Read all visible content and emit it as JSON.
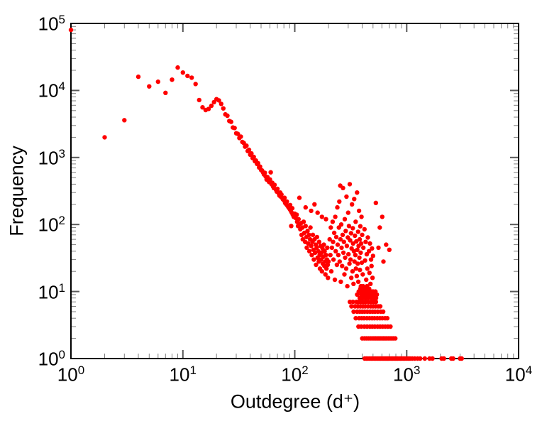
{
  "chart_data": {
    "type": "scatter",
    "title": "",
    "xlabel": "Outdegree (d⁺)",
    "ylabel": "Frequency",
    "x_scale": "log",
    "y_scale": "log",
    "xlim": [
      1,
      10000
    ],
    "ylim": [
      1,
      100000
    ],
    "grid": false,
    "legend": "none",
    "tick_base": "10",
    "x_tick_exponents": [
      0,
      1,
      2,
      3,
      4
    ],
    "y_tick_exponents": [
      0,
      1,
      2,
      3,
      4,
      5
    ],
    "marker": {
      "shape": "circle",
      "color": "#ff0000",
      "radius_px": 3.2
    },
    "colors": {
      "frame": "#000000",
      "major_tick": "#595959",
      "minor_tick": "#808080",
      "background": "#ffffff"
    },
    "points": [
      [
        1,
        80000
      ],
      [
        2,
        2000
      ],
      [
        3,
        3600
      ],
      [
        4,
        16000
      ],
      [
        5,
        11500
      ],
      [
        6,
        13500
      ],
      [
        7,
        9200
      ],
      [
        8,
        14500
      ],
      [
        9,
        22000
      ],
      [
        10,
        18500
      ],
      [
        11,
        16500
      ],
      [
        12,
        15500
      ],
      [
        13,
        12500
      ],
      [
        14,
        7200
      ],
      [
        15,
        5600
      ],
      [
        16,
        5100
      ],
      [
        17,
        5300
      ],
      [
        18,
        5900
      ],
      [
        19,
        6700
      ],
      [
        20,
        7400
      ],
      [
        21,
        7100
      ],
      [
        22,
        6300
      ],
      [
        23,
        5400
      ],
      [
        24,
        4400
      ],
      [
        25,
        4200
      ],
      [
        26,
        3500
      ],
      [
        27,
        3400
      ],
      [
        28,
        2800
      ],
      [
        29,
        2750
      ],
      [
        30,
        2300
      ],
      [
        31,
        2250
      ],
      [
        32,
        1950
      ],
      [
        33,
        2050
      ],
      [
        34,
        1700
      ],
      [
        35,
        1650
      ],
      [
        36,
        1450
      ],
      [
        37,
        1500
      ],
      [
        38,
        1250
      ],
      [
        39,
        1300
      ],
      [
        40,
        1100
      ],
      [
        41,
        1150
      ],
      [
        42,
        980
      ],
      [
        43,
        1020
      ],
      [
        44,
        880
      ],
      [
        45,
        900
      ],
      [
        46,
        800
      ],
      [
        47,
        820
      ],
      [
        48,
        710
      ],
      [
        49,
        730
      ],
      [
        50,
        650
      ],
      [
        51,
        640
      ],
      [
        52,
        600
      ],
      [
        53,
        560
      ],
      [
        54,
        590
      ],
      [
        55,
        520
      ],
      [
        56,
        470
      ],
      [
        57,
        510
      ],
      [
        58,
        450
      ],
      [
        59,
        430
      ],
      [
        60,
        470
      ],
      [
        61,
        600
      ],
      [
        62,
        400
      ],
      [
        63,
        420
      ],
      [
        64,
        370
      ],
      [
        65,
        350
      ],
      [
        66,
        390
      ],
      [
        68,
        330
      ],
      [
        69,
        310
      ],
      [
        70,
        340
      ],
      [
        72,
        290
      ],
      [
        73,
        270
      ],
      [
        74,
        300
      ],
      [
        75,
        260
      ],
      [
        76,
        280
      ],
      [
        78,
        240
      ],
      [
        80,
        230
      ],
      [
        81,
        250
      ],
      [
        82,
        210
      ],
      [
        84,
        200
      ],
      [
        85,
        220
      ],
      [
        86,
        190
      ],
      [
        88,
        180
      ],
      [
        90,
        170
      ],
      [
        91,
        195
      ],
      [
        92,
        160
      ],
      [
        93,
        95
      ],
      [
        94,
        150
      ],
      [
        95,
        175
      ],
      [
        96,
        140
      ],
      [
        98,
        130
      ],
      [
        100,
        145
      ],
      [
        102,
        125
      ],
      [
        104,
        140
      ],
      [
        105,
        110
      ],
      [
        107,
        95
      ],
      [
        108,
        120
      ],
      [
        110,
        100
      ],
      [
        110,
        250
      ],
      [
        112,
        85
      ],
      [
        114,
        105
      ],
      [
        115,
        70
      ],
      [
        117,
        90
      ],
      [
        118,
        60
      ],
      [
        120,
        110
      ],
      [
        122,
        75
      ],
      [
        124,
        55
      ],
      [
        125,
        95
      ],
      [
        125,
        180
      ],
      [
        127,
        65
      ],
      [
        128,
        45
      ],
      [
        130,
        80
      ],
      [
        132,
        52
      ],
      [
        134,
        70
      ],
      [
        135,
        40
      ],
      [
        137,
        60
      ],
      [
        138,
        90
      ],
      [
        140,
        48
      ],
      [
        140,
        160
      ],
      [
        142,
        35
      ],
      [
        144,
        55
      ],
      [
        145,
        70
      ],
      [
        147,
        42
      ],
      [
        148,
        30
      ],
      [
        150,
        60
      ],
      [
        150,
        200
      ],
      [
        152,
        38
      ],
      [
        154,
        50
      ],
      [
        155,
        25
      ],
      [
        157,
        45
      ],
      [
        158,
        65
      ],
      [
        160,
        32
      ],
      [
        160,
        150
      ],
      [
        162,
        40
      ],
      [
        164,
        28
      ],
      [
        165,
        55
      ],
      [
        167,
        35
      ],
      [
        168,
        22
      ],
      [
        170,
        48
      ],
      [
        172,
        30
      ],
      [
        174,
        38
      ],
      [
        175,
        20
      ],
      [
        175,
        130
      ],
      [
        177,
        44
      ],
      [
        178,
        26
      ],
      [
        180,
        33
      ],
      [
        182,
        50
      ],
      [
        184,
        24
      ],
      [
        185,
        40
      ],
      [
        187,
        28
      ],
      [
        188,
        18
      ],
      [
        190,
        35
      ],
      [
        190,
        120
      ],
      [
        192,
        22
      ],
      [
        194,
        30
      ],
      [
        195,
        45
      ],
      [
        197,
        25
      ],
      [
        198,
        16
      ],
      [
        200,
        28
      ],
      [
        205,
        60
      ],
      [
        208,
        35
      ],
      [
        210,
        90
      ],
      [
        212,
        20
      ],
      [
        215,
        45
      ],
      [
        218,
        110
      ],
      [
        220,
        55
      ],
      [
        222,
        30
      ],
      [
        225,
        75
      ],
      [
        228,
        15
      ],
      [
        230,
        130
      ],
      [
        232,
        40
      ],
      [
        235,
        65
      ],
      [
        238,
        25
      ],
      [
        240,
        180
      ],
      [
        242,
        50
      ],
      [
        245,
        35
      ],
      [
        248,
        90
      ],
      [
        250,
        220
      ],
      [
        252,
        28
      ],
      [
        255,
        380
      ],
      [
        256,
        60
      ],
      [
        258,
        14
      ],
      [
        260,
        100
      ],
      [
        262,
        45
      ],
      [
        265,
        24
      ],
      [
        268,
        70
      ],
      [
        270,
        350
      ],
      [
        272,
        38
      ],
      [
        275,
        55
      ],
      [
        278,
        18
      ],
      [
        280,
        120
      ],
      [
        282,
        32
      ],
      [
        285,
        80
      ],
      [
        288,
        22
      ],
      [
        290,
        260
      ],
      [
        292,
        48
      ],
      [
        295,
        12
      ],
      [
        298,
        64
      ],
      [
        300,
        150
      ],
      [
        302,
        36
      ],
      [
        305,
        95
      ],
      [
        308,
        26
      ],
      [
        310,
        400
      ],
      [
        312,
        58
      ],
      [
        315,
        30
      ],
      [
        318,
        74
      ],
      [
        320,
        16
      ],
      [
        322,
        44
      ],
      [
        325,
        200
      ],
      [
        328,
        20
      ],
      [
        330,
        88
      ],
      [
        332,
        52
      ],
      [
        335,
        13
      ],
      [
        338,
        40
      ],
      [
        340,
        240
      ],
      [
        342,
        28
      ],
      [
        345,
        68
      ],
      [
        348,
        35
      ],
      [
        350,
        110
      ],
      [
        352,
        22
      ],
      [
        355,
        56
      ],
      [
        358,
        17
      ],
      [
        360,
        300
      ],
      [
        362,
        42
      ],
      [
        365,
        26
      ],
      [
        368,
        78
      ],
      [
        370,
        14
      ],
      [
        372,
        48
      ],
      [
        375,
        160
      ],
      [
        378,
        32
      ],
      [
        380,
        60
      ],
      [
        382,
        21
      ],
      [
        385,
        94
      ],
      [
        388,
        38
      ],
      [
        390,
        12
      ],
      [
        392,
        52
      ],
      [
        395,
        130
      ],
      [
        398,
        27
      ],
      [
        400,
        70
      ],
      [
        405,
        18
      ],
      [
        410,
        45
      ],
      [
        415,
        10
      ],
      [
        420,
        85
      ],
      [
        425,
        29
      ],
      [
        430,
        55
      ],
      [
        435,
        15
      ],
      [
        440,
        36
      ],
      [
        445,
        22
      ],
      [
        450,
        64
      ],
      [
        455,
        11
      ],
      [
        460,
        40
      ],
      [
        465,
        19
      ],
      [
        470,
        52
      ],
      [
        475,
        13
      ],
      [
        480,
        30
      ],
      [
        485,
        24
      ],
      [
        490,
        44
      ],
      [
        495,
        16
      ],
      [
        500,
        34
      ],
      [
        530,
        210
      ],
      [
        560,
        45
      ],
      [
        575,
        90
      ],
      [
        605,
        130
      ],
      [
        620,
        28
      ],
      [
        655,
        50
      ],
      [
        700,
        42
      ],
      [
        361,
        9
      ],
      [
        373,
        10
      ],
      [
        381,
        8
      ],
      [
        386,
        11
      ],
      [
        393,
        9
      ],
      [
        399,
        10
      ],
      [
        402,
        8
      ],
      [
        408,
        12
      ],
      [
        412,
        9
      ],
      [
        418,
        10
      ],
      [
        422,
        11
      ],
      [
        428,
        8
      ],
      [
        432,
        10
      ],
      [
        438,
        9
      ],
      [
        442,
        12
      ],
      [
        448,
        10
      ],
      [
        452,
        8
      ],
      [
        458,
        9
      ],
      [
        462,
        11
      ],
      [
        468,
        10
      ],
      [
        476,
        9
      ],
      [
        482,
        8
      ],
      [
        488,
        10
      ],
      [
        496,
        9
      ],
      [
        502,
        10
      ],
      [
        510,
        8
      ],
      [
        518,
        9
      ],
      [
        526,
        10
      ],
      [
        533,
        8
      ],
      [
        541,
        9
      ],
      [
        311,
        7
      ],
      [
        331,
        7
      ],
      [
        356,
        7
      ],
      [
        371,
        7
      ],
      [
        391,
        7
      ],
      [
        411,
        7
      ],
      [
        431,
        7
      ],
      [
        456,
        7
      ],
      [
        481,
        7
      ],
      [
        506,
        7
      ],
      [
        531,
        7
      ],
      [
        321,
        6
      ],
      [
        346,
        6
      ],
      [
        366,
        6
      ],
      [
        386,
        6
      ],
      [
        406,
        6
      ],
      [
        426,
        6
      ],
      [
        451,
        6
      ],
      [
        477,
        6
      ],
      [
        501,
        6
      ],
      [
        527,
        6
      ],
      [
        556,
        6
      ],
      [
        581,
        6
      ],
      [
        336,
        5
      ],
      [
        361,
        5
      ],
      [
        381,
        5
      ],
      [
        401,
        5
      ],
      [
        421,
        5
      ],
      [
        446,
        5
      ],
      [
        471,
        5
      ],
      [
        496,
        5
      ],
      [
        521,
        5
      ],
      [
        551,
        5
      ],
      [
        586,
        5
      ],
      [
        616,
        5
      ],
      [
        351,
        4
      ],
      [
        376,
        4
      ],
      [
        396,
        4
      ],
      [
        416,
        4
      ],
      [
        441,
        4
      ],
      [
        466,
        4
      ],
      [
        491,
        4
      ],
      [
        516,
        4
      ],
      [
        546,
        4
      ],
      [
        576,
        4
      ],
      [
        606,
        4
      ],
      [
        641,
        4
      ],
      [
        671,
        4
      ],
      [
        371,
        3
      ],
      [
        393,
        3
      ],
      [
        419,
        3
      ],
      [
        443,
        3
      ],
      [
        469,
        3
      ],
      [
        493,
        3
      ],
      [
        519,
        3
      ],
      [
        549,
        3
      ],
      [
        579,
        3
      ],
      [
        609,
        3
      ],
      [
        643,
        3
      ],
      [
        679,
        3
      ],
      [
        716,
        3
      ],
      [
        401,
        2
      ],
      [
        419,
        2
      ],
      [
        437,
        2
      ],
      [
        455,
        2
      ],
      [
        473,
        2
      ],
      [
        491,
        2
      ],
      [
        509,
        2
      ],
      [
        527,
        2
      ],
      [
        545,
        2
      ],
      [
        563,
        2
      ],
      [
        581,
        2
      ],
      [
        601,
        2
      ],
      [
        621,
        2
      ],
      [
        641,
        2
      ],
      [
        661,
        2
      ],
      [
        686,
        2
      ],
      [
        711,
        2
      ],
      [
        736,
        2
      ],
      [
        761,
        2
      ],
      [
        791,
        2
      ],
      [
        421,
        1
      ],
      [
        436,
        1
      ],
      [
        451,
        1
      ],
      [
        466,
        1
      ],
      [
        481,
        1
      ],
      [
        496,
        1
      ],
      [
        511,
        1
      ],
      [
        526,
        1
      ],
      [
        541,
        1
      ],
      [
        556,
        1
      ],
      [
        571,
        1
      ],
      [
        586,
        1
      ],
      [
        601,
        1
      ],
      [
        616,
        1
      ],
      [
        631,
        1
      ],
      [
        646,
        1
      ],
      [
        661,
        1
      ],
      [
        676,
        1
      ],
      [
        691,
        1
      ],
      [
        711,
        1
      ],
      [
        731,
        1
      ],
      [
        751,
        1
      ],
      [
        771,
        1
      ],
      [
        791,
        1
      ],
      [
        811,
        1
      ],
      [
        831,
        1
      ],
      [
        856,
        1
      ],
      [
        881,
        1
      ],
      [
        906,
        1
      ],
      [
        931,
        1
      ],
      [
        961,
        1
      ],
      [
        991,
        1
      ],
      [
        1031,
        1
      ],
      [
        1071,
        1
      ],
      [
        1121,
        1
      ],
      [
        1181,
        1
      ],
      [
        1251,
        1
      ],
      [
        1321,
        1
      ],
      [
        1451,
        1
      ],
      [
        1601,
        1
      ],
      [
        1701,
        1
      ],
      [
        2051,
        1
      ],
      [
        2151,
        1
      ],
      [
        2501,
        1
      ],
      [
        2601,
        1
      ],
      [
        3001,
        1
      ],
      [
        3101,
        1
      ]
    ]
  }
}
